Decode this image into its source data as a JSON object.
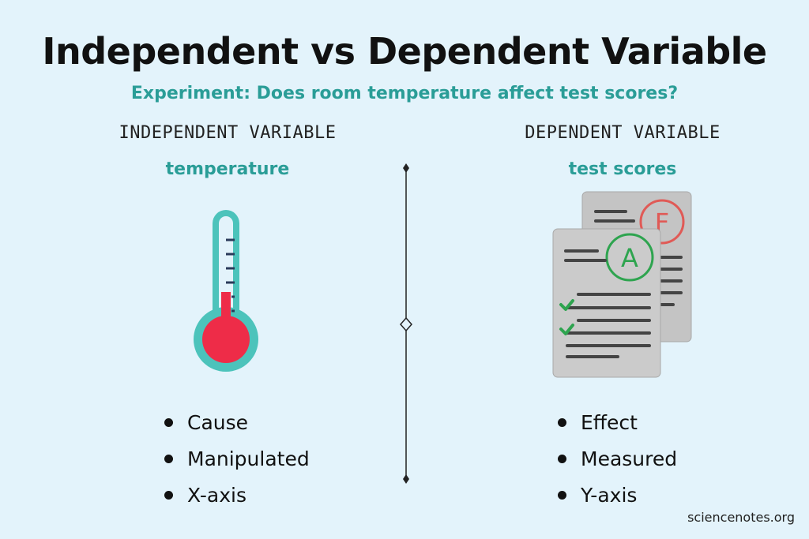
{
  "title": "Independent vs Dependent Variable",
  "subtitle": "Experiment: Does room temperature affect test scores?",
  "independent": {
    "heading": "INDEPENDENT VARIABLE",
    "example": "temperature",
    "bullets": [
      "Cause",
      "Manipulated",
      "X-axis"
    ]
  },
  "dependent": {
    "heading": "DEPENDENT VARIABLE",
    "example": "test scores",
    "bullets": [
      "Effect",
      "Measured",
      "Y-axis"
    ],
    "grades": {
      "front": "A",
      "back": "F"
    }
  },
  "credit": "sciencenotes.org",
  "colors": {
    "accent": "#2a9d97",
    "thermometer_outline": "#4cc3bb",
    "mercury": "#ee2c48",
    "paper": "#c8c8c8",
    "grade_a": "#2ea44f",
    "grade_f": "#e05a56",
    "background": "#e3f3fb"
  }
}
